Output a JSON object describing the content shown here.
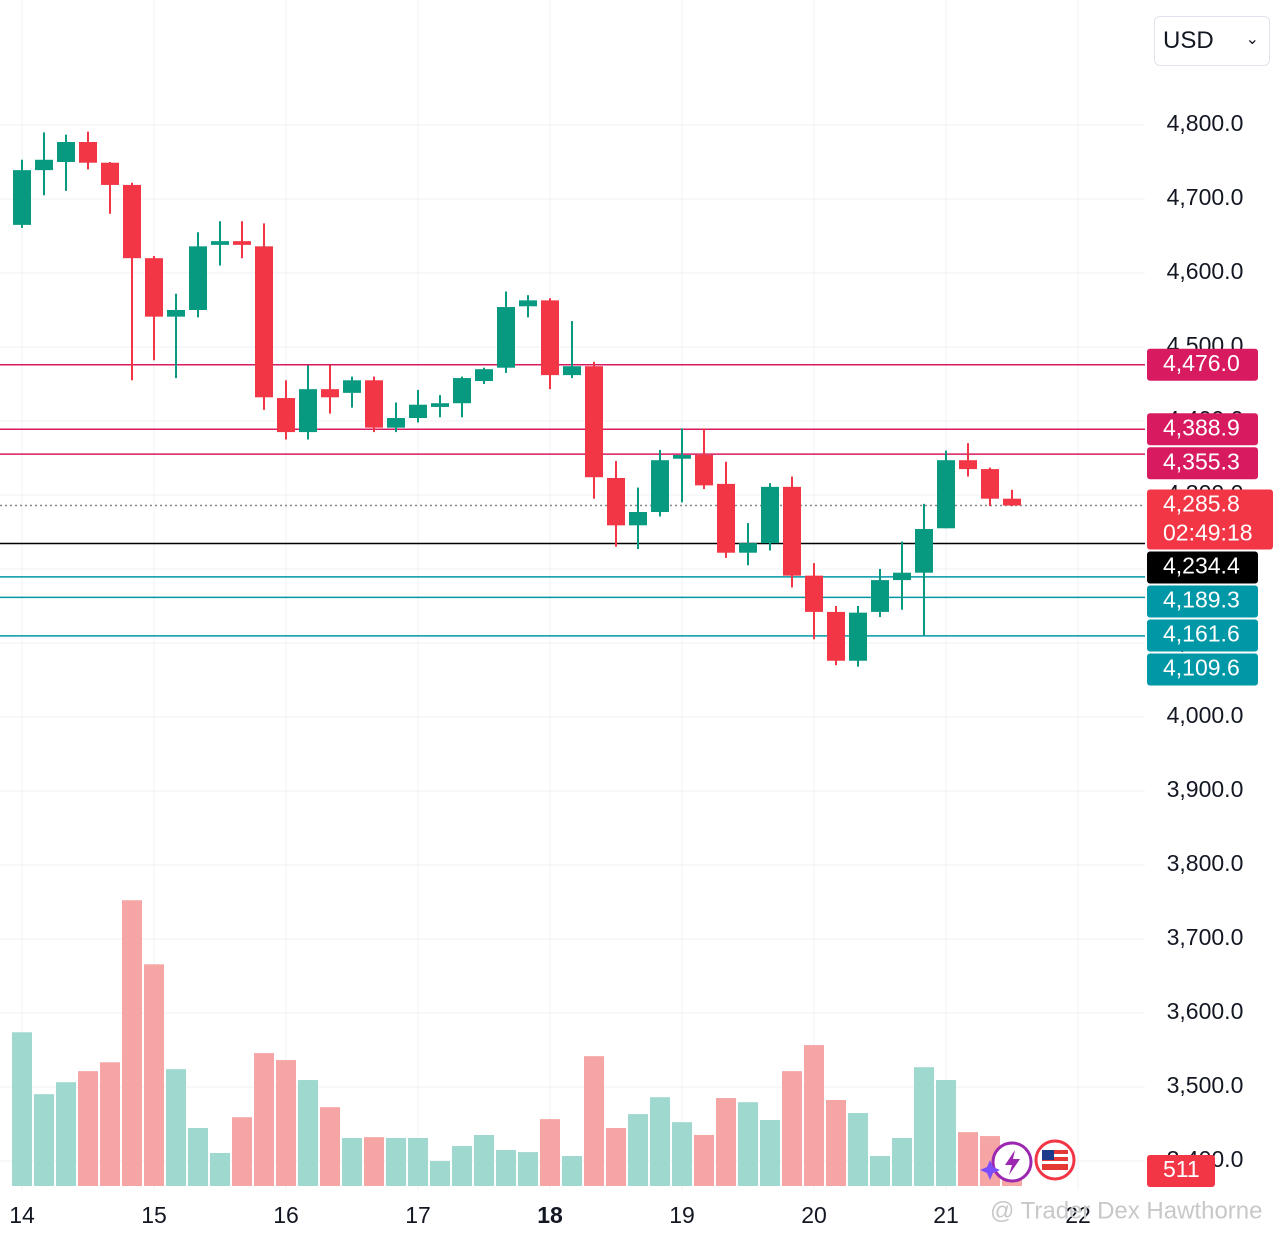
{
  "chart_data": {
    "type": "candlestick",
    "currency": "USD",
    "x": [
      14,
      14.1667,
      14.3333,
      14.5,
      14.6667,
      14.8333,
      15,
      15.1667,
      15.3333,
      15.5,
      15.6667,
      15.8333,
      16,
      16.1667,
      16.3333,
      16.5,
      16.6667,
      16.8333,
      17,
      17.1667,
      17.3333,
      17.5,
      17.6667,
      17.8333,
      18,
      18.1667,
      18.3333,
      18.5,
      18.6667,
      18.8333,
      19,
      19.1667,
      19.3333,
      19.5,
      19.6667,
      19.8333,
      20,
      20.1667,
      20.3333,
      20.5,
      20.6667,
      20.8333,
      21,
      21.1667,
      21.3333,
      21.5
    ],
    "open": [
      4665,
      4739,
      4750,
      4777,
      4749,
      4719,
      4620,
      4541,
      4550,
      4638,
      4643,
      4636,
      4431,
      4385,
      4443,
      4438,
      4455,
      4391,
      4404,
      4419,
      4424,
      4454,
      4472,
      4555,
      4563,
      4462,
      4474,
      4323,
      4259,
      4277,
      4349,
      4354,
      4315,
      4222,
      4235,
      4311,
      4191,
      4142,
      4076,
      4142,
      4185,
      4195,
      4255,
      4347,
      4335,
      4295
    ],
    "high": [
      4753,
      4790,
      4787,
      4791,
      4750,
      4722,
      4623,
      4572,
      4655,
      4670,
      4670,
      4667,
      4455,
      4475,
      4475,
      4460,
      4460,
      4425,
      4442,
      4435,
      4460,
      4472,
      4575,
      4570,
      4566,
      4535,
      4480,
      4346,
      4310,
      4361,
      4390,
      4390,
      4345,
      4262,
      4316,
      4325,
      4208,
      4150,
      4150,
      4200,
      4237,
      4288,
      4360,
      4370,
      4337,
      4307
    ],
    "low": [
      4661,
      4705,
      4711,
      4740,
      4680,
      4455,
      4482,
      4458,
      4540,
      4610,
      4620,
      4415,
      4375,
      4375,
      4410,
      4418,
      4385,
      4385,
      4398,
      4405,
      4405,
      4450,
      4465,
      4540,
      4443,
      4458,
      4295,
      4230,
      4227,
      4271,
      4290,
      4308,
      4215,
      4205,
      4225,
      4175,
      4105,
      4070,
      4068,
      4135,
      4145,
      4110,
      4255,
      4325,
      4285,
      4285
    ],
    "close": [
      4739,
      4753,
      4777,
      4749,
      4719,
      4620,
      4541,
      4550,
      4636,
      4643,
      4638,
      4432,
      4385,
      4443,
      4432,
      4455,
      4391,
      4404,
      4422,
      4424,
      4458,
      4470,
      4554,
      4563,
      4462,
      4474,
      4324,
      4259,
      4277,
      4347,
      4354,
      4313,
      4222,
      4235,
      4311,
      4191,
      4142,
      4076,
      4141,
      4185,
      4195,
      4254,
      4347,
      4335,
      4295,
      4285.8
    ],
    "volume": [
      7080,
      4230,
      4780,
      5290,
      5700,
      13160,
      10210,
      5380,
      2670,
      1520,
      3170,
      6120,
      5800,
      4880,
      3630,
      2210,
      2250,
      2210,
      2210,
      1150,
      1840,
      2350,
      1660,
      1560,
      3080,
      1380,
      5980,
      2670,
      3310,
      4090,
      2940,
      2350,
      4050,
      3860,
      3040,
      5290,
      6490,
      3960,
      3360,
      1380,
      2210,
      5470,
      4880,
      2480,
      2300,
      511
    ],
    "up_color": "#089981",
    "down_color": "#f23645",
    "volume_up_color": "#9fd8cf",
    "volume_down_color": "#f6a5a5",
    "xlim": [
      13.8333,
      22.5076
    ],
    "xticks": [
      14,
      15,
      16,
      17,
      18,
      19,
      20,
      21,
      22
    ],
    "emphasized_xtick": 18,
    "ylim": [
      3360.8,
      4968.9
    ],
    "yticks": [
      {
        "value": 3400,
        "label": "3,400.0"
      },
      {
        "value": 3500,
        "label": "3,500.0"
      },
      {
        "value": 3600,
        "label": "3,600.0"
      },
      {
        "value": 3700,
        "label": "3,700.0"
      },
      {
        "value": 3800,
        "label": "3,800.0"
      },
      {
        "value": 3900,
        "label": "3,900.0"
      },
      {
        "value": 4000,
        "label": "4,000.0"
      },
      {
        "value": 4100,
        "label": "4,100.0"
      },
      {
        "value": 4200,
        "label": "4,200.0"
      },
      {
        "value": 4300,
        "label": "4,300.0"
      },
      {
        "value": 4400,
        "label": "4,400.0"
      },
      {
        "value": 4500,
        "label": "4,500.0"
      },
      {
        "value": 4600,
        "label": "4,600.0"
      },
      {
        "value": 4700,
        "label": "4,700.0"
      },
      {
        "value": 4800,
        "label": "4,800.0"
      }
    ],
    "volume_ylim": [
      0,
      14000
    ],
    "grid": true,
    "price_lines": [
      {
        "value": 4476,
        "label": "4,476.0",
        "color": "#d81b60"
      },
      {
        "value": 4388.9,
        "label": "4,388.9",
        "color": "#d81b60"
      },
      {
        "value": 4355.3,
        "label": "4,355.3",
        "color": "#d81b60"
      },
      {
        "value": 4234.4,
        "label": "4,234.4",
        "color": "#000000"
      },
      {
        "value": 4189.3,
        "label": "4,189.3",
        "color": "#0097a7"
      },
      {
        "value": 4161.6,
        "label": "4,161.6",
        "color": "#0097a7"
      },
      {
        "value": 4109.6,
        "label": "4,109.6",
        "color": "#0097a7"
      }
    ],
    "last_price": {
      "value": 4285.8,
      "label": "4,285.8",
      "countdown": "02:49:18",
      "color": "#f23645"
    },
    "watermark": "@ Trader Dex Hawthorne"
  }
}
